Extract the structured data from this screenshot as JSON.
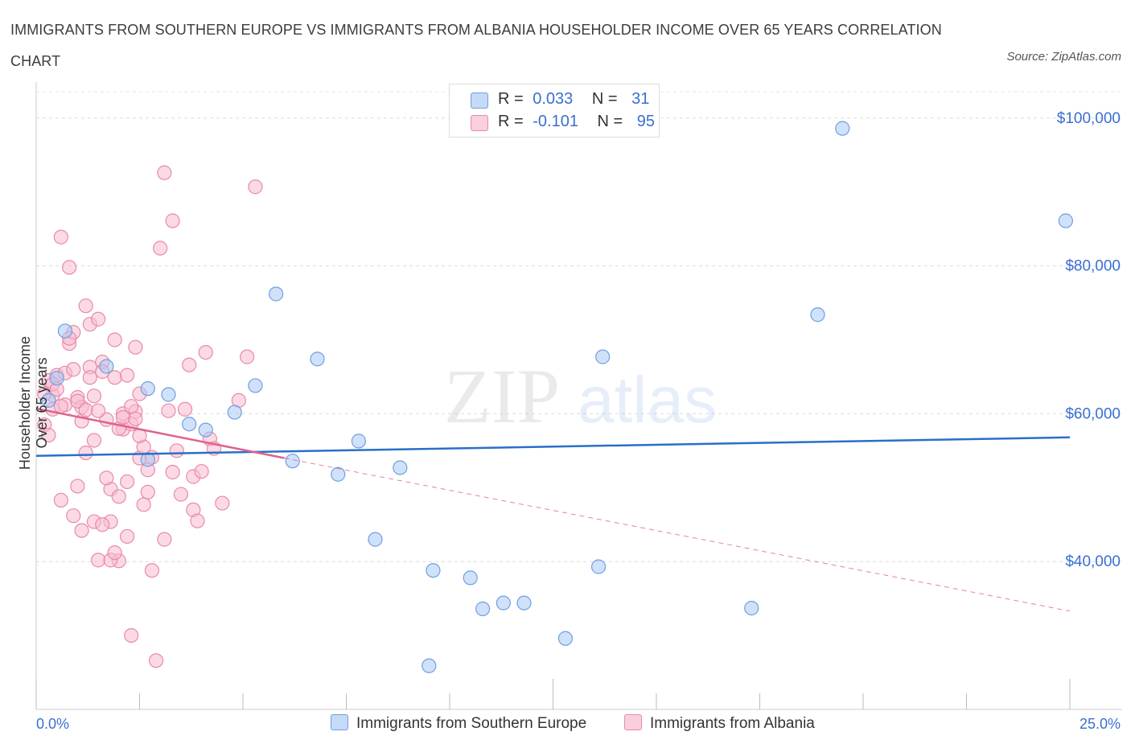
{
  "title": "IMMIGRANTS FROM SOUTHERN EUROPE VS IMMIGRANTS FROM ALBANIA HOUSEHOLDER INCOME OVER 65 YEARS CORRELATION CHART",
  "source": "Source: ZipAtlas.com",
  "watermark": {
    "zip": "ZIP",
    "atlas": "atlas"
  },
  "legend_top": {
    "rows": [
      {
        "r_label": "R =",
        "r_value": "0.033",
        "n_label": "N =",
        "n_value": "31",
        "color": "#a9c8f5",
        "border": "#6f9fe0"
      },
      {
        "r_label": "R =",
        "r_value": "-0.101",
        "n_label": "N =",
        "n_value": "95",
        "color": "#f7bcd0",
        "border": "#e88aa8"
      }
    ]
  },
  "colors": {
    "blue": "#6f9fe0",
    "blue_fill": "#a9c8f5",
    "blue_line": "#2a6fc9",
    "pink": "#e88aa8",
    "pink_fill": "#f7bcd0",
    "pink_line": "#e0628e",
    "axis_text": "#3a6fd0"
  },
  "chart_data": {
    "type": "scatter",
    "title": "IMMIGRANTS FROM SOUTHERN EUROPE VS IMMIGRANTS FROM ALBANIA HOUSEHOLDER INCOME OVER 65 YEARS CORRELATION CHART",
    "xlabel": "",
    "ylabel": "Householder Income Over 65 years",
    "xlim": [
      0,
      25
    ],
    "ylim": [
      20000,
      104000
    ],
    "x_tick_labels": [
      "0.0%",
      "25.0%"
    ],
    "y_ticks": [
      40000,
      60000,
      80000,
      100000
    ],
    "y_tick_labels": [
      "$40,000",
      "$60,000",
      "$80,000",
      "$100,000"
    ],
    "grid": true,
    "legend": "bottom-center",
    "series": [
      {
        "name": "Immigrants from Southern Europe",
        "color": "#6f9fe0",
        "trend": {
          "x": [
            0,
            25
          ],
          "y": [
            54300,
            56800
          ]
        },
        "points": [
          [
            0.3,
            61800
          ],
          [
            0.7,
            71200
          ],
          [
            1.7,
            66400
          ],
          [
            2.7,
            63400
          ],
          [
            2.7,
            53800
          ],
          [
            3.2,
            62600
          ],
          [
            3.7,
            58600
          ],
          [
            4.1,
            57800
          ],
          [
            4.8,
            60200
          ],
          [
            5.3,
            63800
          ],
          [
            5.8,
            76200
          ],
          [
            6.2,
            53600
          ],
          [
            6.8,
            67400
          ],
          [
            7.3,
            51800
          ],
          [
            7.8,
            56300
          ],
          [
            8.2,
            43000
          ],
          [
            8.8,
            52700
          ],
          [
            9.6,
            38800
          ],
          [
            10.5,
            37800
          ],
          [
            10.8,
            33600
          ],
          [
            11.3,
            34400
          ],
          [
            11.8,
            34400
          ],
          [
            12.8,
            29600
          ],
          [
            13.6,
            39300
          ],
          [
            13.7,
            67700
          ],
          [
            17.3,
            33700
          ],
          [
            18.9,
            73400
          ],
          [
            19.5,
            98600
          ],
          [
            24.9,
            86100
          ],
          [
            9.5,
            25900
          ],
          [
            0.5,
            64800
          ]
        ]
      },
      {
        "name": "Immigrants from Albania",
        "color": "#e88aa8",
        "trend": {
          "x": [
            0,
            6.0
          ],
          "y": [
            60700,
            54000
          ]
        },
        "trend_extended": {
          "x": [
            6.0,
            25
          ],
          "y": [
            54000,
            33300
          ]
        },
        "points": [
          [
            0.3,
            64500
          ],
          [
            0.4,
            62500
          ],
          [
            0.4,
            60600
          ],
          [
            0.5,
            65200
          ],
          [
            0.6,
            48300
          ],
          [
            0.6,
            83900
          ],
          [
            0.7,
            61200
          ],
          [
            0.8,
            79800
          ],
          [
            0.8,
            69500
          ],
          [
            0.9,
            46200
          ],
          [
            0.9,
            71000
          ],
          [
            1.0,
            62200
          ],
          [
            1.0,
            50200
          ],
          [
            1.1,
            44200
          ],
          [
            1.1,
            60900
          ],
          [
            1.2,
            74600
          ],
          [
            1.2,
            54700
          ],
          [
            1.3,
            72100
          ],
          [
            1.3,
            66300
          ],
          [
            1.4,
            45400
          ],
          [
            1.4,
            62400
          ],
          [
            1.5,
            40200
          ],
          [
            1.5,
            72800
          ],
          [
            1.6,
            67000
          ],
          [
            1.6,
            65700
          ],
          [
            1.7,
            59200
          ],
          [
            1.8,
            45400
          ],
          [
            1.8,
            49800
          ],
          [
            1.9,
            70000
          ],
          [
            1.9,
            64900
          ],
          [
            2.0,
            40100
          ],
          [
            2.0,
            48800
          ],
          [
            2.1,
            57900
          ],
          [
            2.1,
            60000
          ],
          [
            2.2,
            50800
          ],
          [
            2.2,
            43400
          ],
          [
            2.3,
            58600
          ],
          [
            2.3,
            30000
          ],
          [
            2.4,
            60300
          ],
          [
            2.4,
            69000
          ],
          [
            2.5,
            62700
          ],
          [
            2.5,
            54000
          ],
          [
            2.6,
            55500
          ],
          [
            2.6,
            47700
          ],
          [
            2.7,
            52400
          ],
          [
            2.7,
            49400
          ],
          [
            2.8,
            38800
          ],
          [
            2.8,
            54100
          ],
          [
            2.9,
            26600
          ],
          [
            3.0,
            82400
          ],
          [
            3.1,
            92600
          ],
          [
            3.1,
            43000
          ],
          [
            3.2,
            60400
          ],
          [
            3.3,
            86100
          ],
          [
            3.3,
            52100
          ],
          [
            3.4,
            55000
          ],
          [
            3.5,
            49100
          ],
          [
            3.6,
            60600
          ],
          [
            3.7,
            66600
          ],
          [
            3.8,
            47000
          ],
          [
            3.8,
            51500
          ],
          [
            3.9,
            45500
          ],
          [
            4.0,
            52200
          ],
          [
            4.1,
            68300
          ],
          [
            4.2,
            56600
          ],
          [
            4.3,
            55300
          ],
          [
            4.5,
            47900
          ],
          [
            4.9,
            61800
          ],
          [
            5.1,
            67700
          ],
          [
            5.3,
            90700
          ],
          [
            0.2,
            58500
          ],
          [
            0.3,
            57100
          ],
          [
            0.4,
            64000
          ],
          [
            0.5,
            63300
          ],
          [
            0.6,
            61000
          ],
          [
            0.7,
            65500
          ],
          [
            0.8,
            70200
          ],
          [
            0.9,
            66000
          ],
          [
            1.0,
            61700
          ],
          [
            1.1,
            59000
          ],
          [
            1.2,
            60500
          ],
          [
            1.3,
            64900
          ],
          [
            1.4,
            56400
          ],
          [
            1.5,
            60400
          ],
          [
            1.6,
            45000
          ],
          [
            1.7,
            51300
          ],
          [
            1.8,
            40200
          ],
          [
            1.9,
            41200
          ],
          [
            2.0,
            58000
          ],
          [
            2.1,
            59500
          ],
          [
            2.2,
            65200
          ],
          [
            2.3,
            61000
          ],
          [
            2.4,
            59300
          ],
          [
            2.5,
            57000
          ],
          [
            0.2,
            62700
          ]
        ]
      }
    ]
  }
}
